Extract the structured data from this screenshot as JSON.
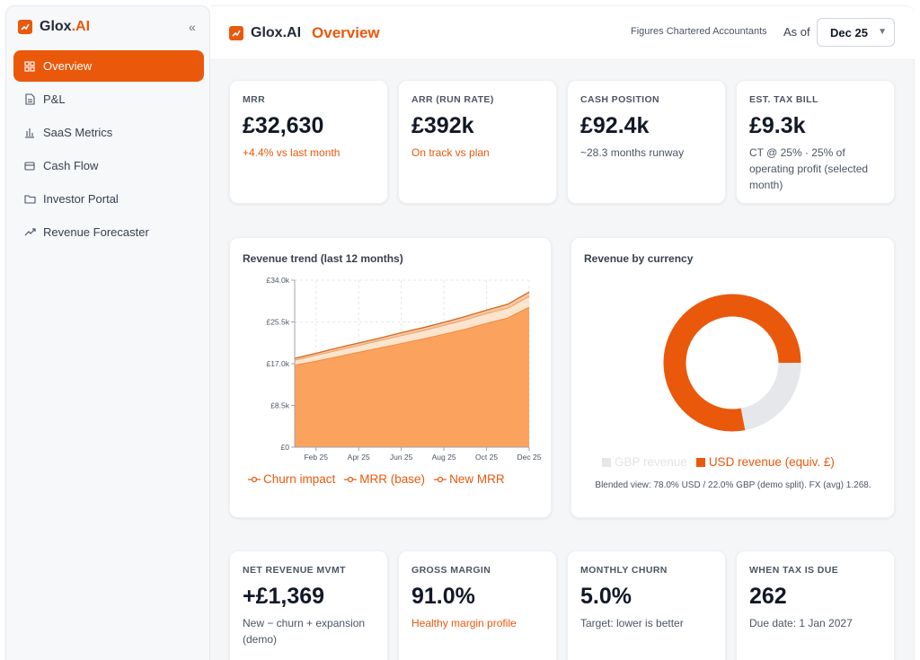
{
  "sidebar": {
    "brand": {
      "name": "Glox",
      "suffix": ".AI"
    },
    "collapse_icon": "«",
    "items": [
      {
        "label": "Overview",
        "icon": "grid-icon",
        "active": true
      },
      {
        "label": "P&L",
        "icon": "document-icon"
      },
      {
        "label": "SaaS Metrics",
        "icon": "bar-chart-icon"
      },
      {
        "label": "Cash Flow",
        "icon": "wallet-icon"
      },
      {
        "label": "Investor Portal",
        "icon": "folder-icon"
      },
      {
        "label": "Revenue Forecaster",
        "icon": "trend-icon"
      }
    ]
  },
  "header": {
    "brand": {
      "name": "Glox",
      "suffix": ".AI"
    },
    "title": "Overview",
    "company": "Figures Chartered Accountants",
    "as_of_label": "As of",
    "period": "Dec 25"
  },
  "kpis_top": [
    {
      "label": "MRR",
      "value": "£32,630",
      "sub": "+4.4% vs last month",
      "accent": true
    },
    {
      "label": "ARR (RUN RATE)",
      "value": "£392k",
      "sub": "On track vs plan",
      "accent": true
    },
    {
      "label": "CASH POSITION",
      "value": "£92.4k",
      "sub": "~28.3 months runway",
      "accent": false
    },
    {
      "label": "EST. TAX BILL",
      "value": "£9.3k",
      "sub": "CT @ 25% · 25% of operating profit (selected month)",
      "accent": false
    }
  ],
  "kpis_bottom": [
    {
      "label": "NET REVENUE MVMT",
      "value": "+£1,369",
      "sub": "New − churn + expansion (demo)",
      "accent": false
    },
    {
      "label": "GROSS MARGIN",
      "value": "91.0%",
      "sub": "Healthy margin profile",
      "accent": true
    },
    {
      "label": "MONTHLY CHURN",
      "value": "5.0%",
      "sub": "Target: lower is better",
      "accent": false
    },
    {
      "label": "WHEN TAX IS DUE",
      "value": "262",
      "sub": "Due date: 1 Jan 2027",
      "accent": false
    }
  ],
  "revenue_trend": {
    "title": "Revenue trend (last 12 months)",
    "legend": [
      "Churn impact",
      "MRR (base)",
      "New MRR"
    ]
  },
  "revenue_currency": {
    "title": "Revenue by currency",
    "legend": [
      "GBP revenue",
      "USD revenue (equiv. £)"
    ],
    "note": "Blended view: 78.0% USD / 22.0% GBP (demo split). FX (avg) 1.268."
  },
  "colors": {
    "accent": "#ea580c",
    "base_area": "#fba25e",
    "new_area": "#fde4cd",
    "line": "#d9661f",
    "gbp": "#e6e7ea"
  },
  "chart_data": [
    {
      "type": "area",
      "title": "Revenue trend (last 12 months)",
      "x": [
        "Jan 25",
        "Feb 25",
        "Mar 25",
        "Apr 25",
        "May 25",
        "Jun 25",
        "Jul 25",
        "Aug 25",
        "Sep 25",
        "Oct 25",
        "Nov 25",
        "Dec 25"
      ],
      "x_tick_labels": [
        "Feb 25",
        "Apr 25",
        "Jun 25",
        "Aug 25",
        "Oct 25",
        "Dec 25"
      ],
      "y_tick_labels": [
        "£0",
        "£8.5k",
        "£17.0k",
        "£25.5k",
        "£34.0k"
      ],
      "ylim": [
        0,
        34000
      ],
      "grid": true,
      "stacked": true,
      "series": [
        {
          "name": "MRR (base)",
          "values": [
            16700,
            17500,
            18400,
            19300,
            20200,
            21100,
            22000,
            23000,
            24000,
            25200,
            26300,
            28500
          ]
        },
        {
          "name": "New MRR",
          "values": [
            1000,
            1200,
            1300,
            1400,
            1500,
            1600,
            1700,
            1800,
            1900,
            2000,
            2000,
            2200
          ]
        },
        {
          "name": "Churn impact",
          "values": [
            400,
            400,
            500,
            500,
            500,
            600,
            600,
            600,
            700,
            700,
            800,
            900
          ]
        }
      ],
      "legend": [
        "Churn impact",
        "MRR (base)",
        "New MRR"
      ],
      "legend_position": "bottom"
    },
    {
      "type": "pie",
      "title": "Revenue by currency",
      "donut": true,
      "categories": [
        "GBP revenue",
        "USD revenue (equiv. £)"
      ],
      "values": [
        22.0,
        78.0
      ],
      "legend_position": "bottom"
    }
  ]
}
